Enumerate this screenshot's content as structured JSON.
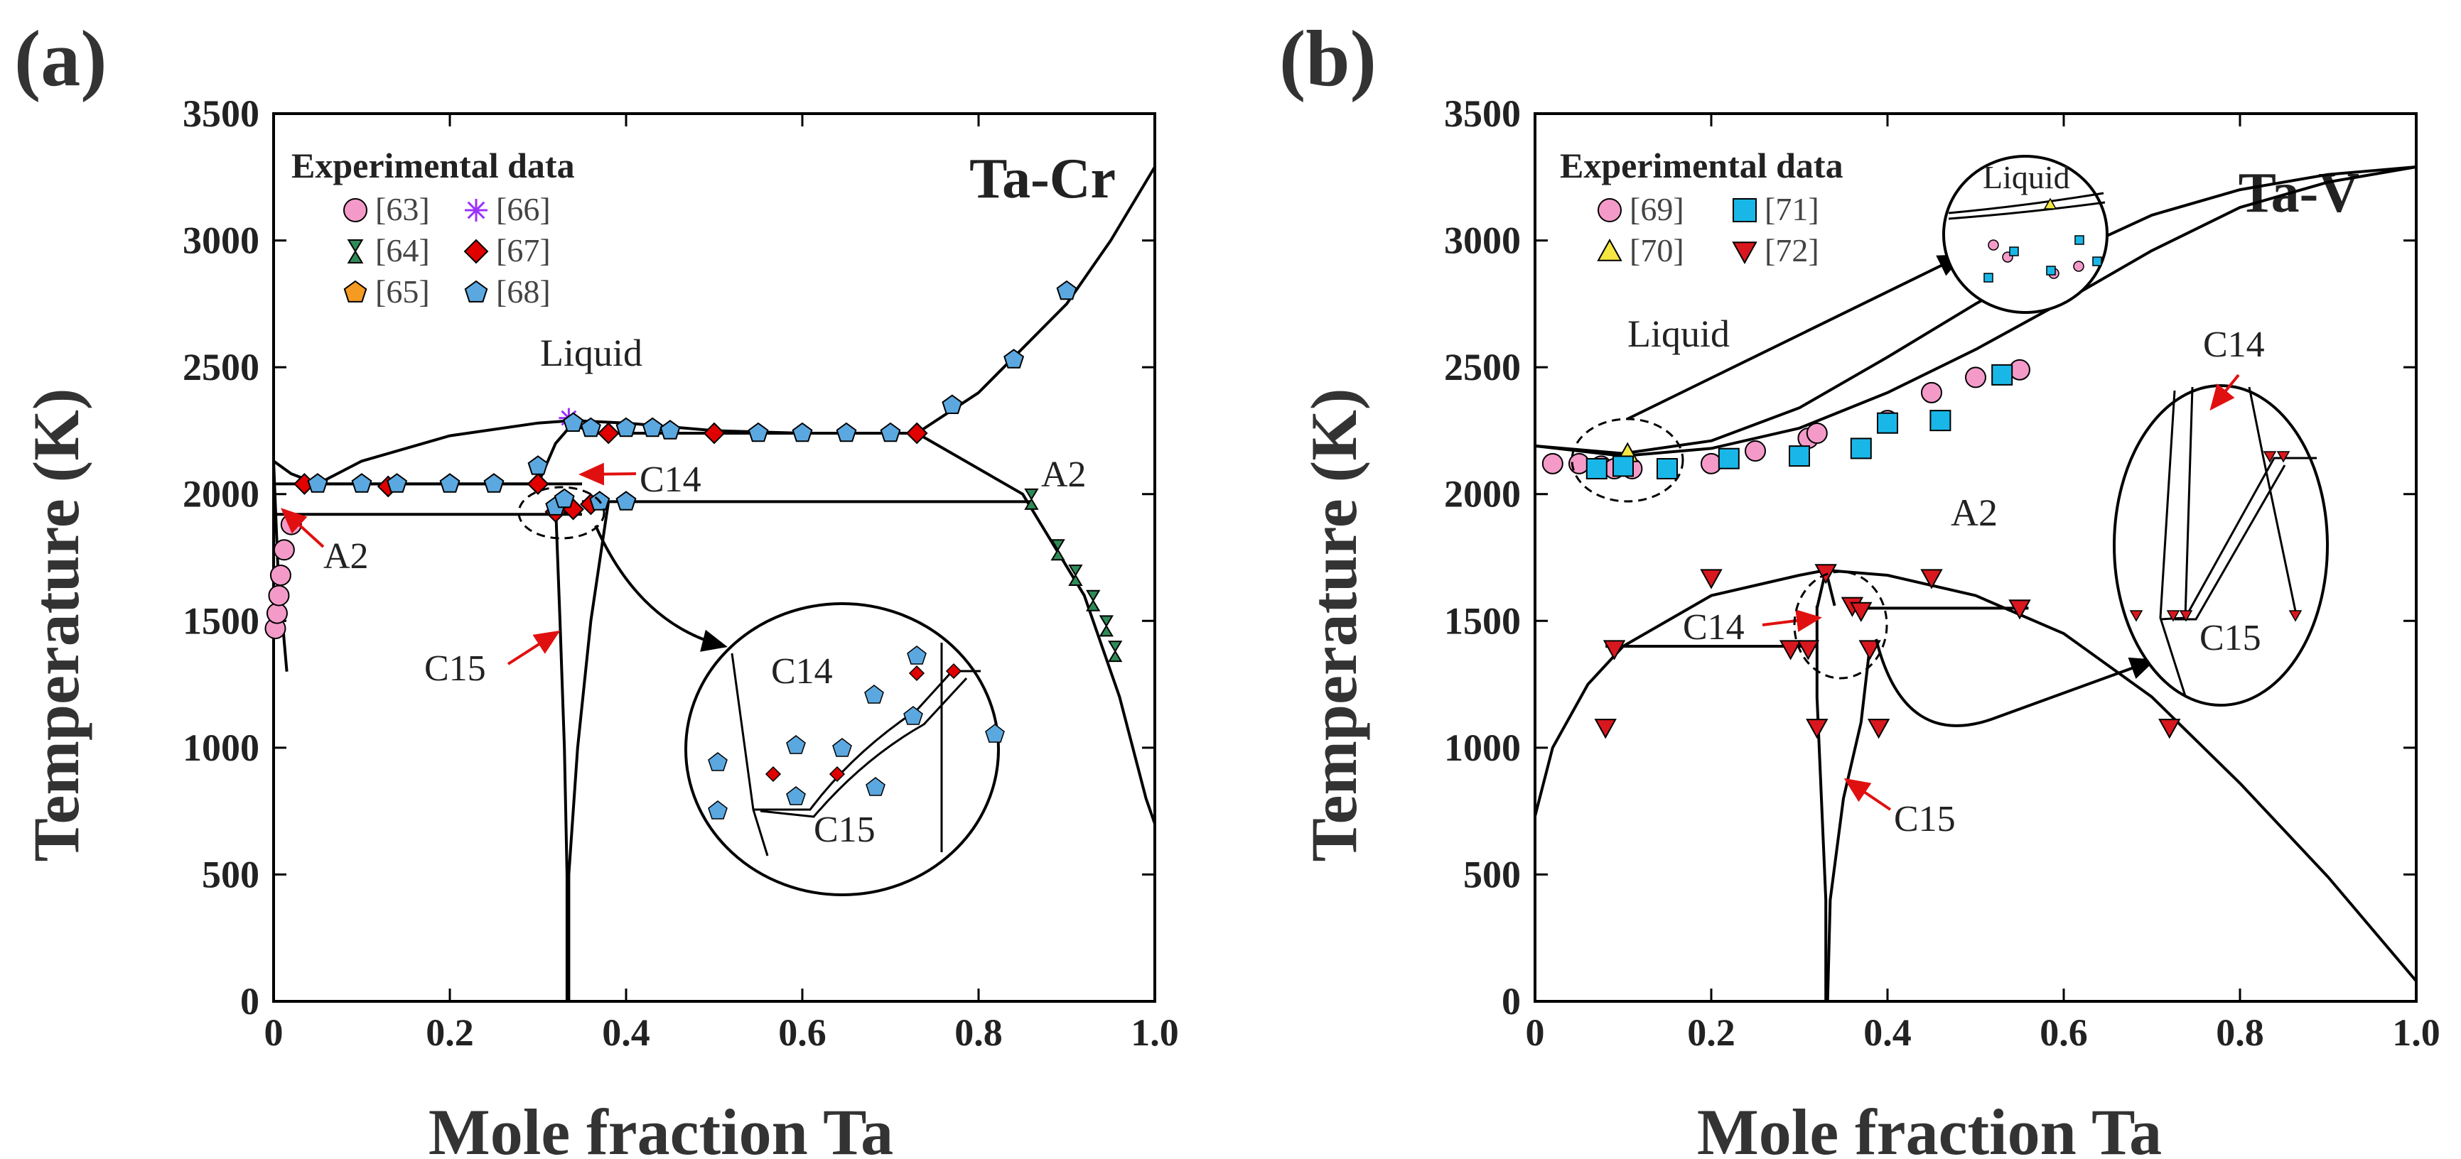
{
  "chart_data": [
    {
      "type": "scatter",
      "panel_label": "(a)",
      "system_title": "Ta-Cr",
      "xlabel": "Mole fraction Ta",
      "ylabel": "Temperature (K)",
      "xlim": [
        0,
        1.0
      ],
      "ylim": [
        0,
        3500
      ],
      "x_ticks": [
        "0",
        "0.2",
        "0.4",
        "0.6",
        "0.8",
        "1.0"
      ],
      "y_ticks": [
        "0",
        "500",
        "1000",
        "1500",
        "2000",
        "2500",
        "3000",
        "3500"
      ],
      "legend_title": "Experimental data",
      "legend": [
        {
          "label": "[63]",
          "marker": "circle",
          "color": "#f49ac9"
        },
        {
          "label": "[66]",
          "marker": "asterisk",
          "color": "#9b30ff"
        },
        {
          "label": "[64]",
          "marker": "hourglass",
          "color": "#2e8b57"
        },
        {
          "label": "[67]",
          "marker": "diamond",
          "color": "#e00000"
        },
        {
          "label": "[65]",
          "marker": "pentagon",
          "color": "#f59a23"
        },
        {
          "label": "[68]",
          "marker": "pentagon",
          "color": "#5ba8e0"
        }
      ],
      "phase_labels": [
        "Liquid",
        "C14",
        "A2",
        "A2",
        "C15"
      ],
      "inset_labels": [
        "C14",
        "C15"
      ],
      "curves": [
        {
          "name": "liquidus-left",
          "points": [
            [
              0,
              2130
            ],
            [
              0.02,
              2080
            ],
            [
              0.05,
              2040
            ],
            [
              0.1,
              2040
            ],
            [
              0.2,
              2040
            ],
            [
              0.3,
              2040
            ]
          ]
        },
        {
          "name": "liquid-dome",
          "points": [
            [
              0.05,
              2040
            ],
            [
              0.1,
              2130
            ],
            [
              0.2,
              2230
            ],
            [
              0.3,
              2280
            ],
            [
              0.34,
              2290
            ],
            [
              0.4,
              2280
            ],
            [
              0.5,
              2250
            ],
            [
              0.6,
              2240
            ],
            [
              0.7,
              2240
            ],
            [
              0.73,
              2240
            ]
          ]
        },
        {
          "name": "eutectic-left",
          "points": [
            [
              0.0,
              2040
            ],
            [
              0.35,
              2040
            ]
          ]
        },
        {
          "name": "solidus-A2-left",
          "points": [
            [
              0,
              2130
            ],
            [
              0.005,
              1700
            ],
            [
              0.01,
              1500
            ],
            [
              0.015,
              1300
            ]
          ]
        },
        {
          "name": "eutectoid-line",
          "points": [
            [
              0.0,
              1920
            ],
            [
              0.35,
              1920
            ]
          ]
        },
        {
          "name": "A2-line-right",
          "points": [
            [
              0.35,
              1970
            ],
            [
              0.86,
              1970
            ]
          ]
        },
        {
          "name": "liquidus-right",
          "points": [
            [
              0.73,
              2240
            ],
            [
              0.8,
              2400
            ],
            [
              0.9,
              2750
            ],
            [
              0.95,
              3000
            ],
            [
              1.0,
              3290
            ]
          ]
        },
        {
          "name": "plateau-right",
          "points": [
            [
              0.36,
              2240
            ],
            [
              0.73,
              2240
            ]
          ]
        },
        {
          "name": "solidus-right",
          "points": [
            [
              0.73,
              2240
            ],
            [
              0.85,
              2000
            ],
            [
              0.92,
              1600
            ],
            [
              0.96,
              1200
            ],
            [
              0.99,
              800
            ],
            [
              1.0,
              700
            ]
          ]
        },
        {
          "name": "C15-left",
          "points": [
            [
              0.32,
              1960
            ],
            [
              0.325,
              1500
            ],
            [
              0.33,
              1000
            ],
            [
              0.333,
              500
            ],
            [
              0.333,
              0
            ]
          ]
        },
        {
          "name": "C15-right",
          "points": [
            [
              0.38,
              1970
            ],
            [
              0.36,
              1500
            ],
            [
              0.345,
              1000
            ],
            [
              0.335,
              500
            ],
            [
              0.335,
              0
            ]
          ]
        },
        {
          "name": "C14-top",
          "points": [
            [
              0.3,
              2040
            ],
            [
              0.32,
              2200
            ],
            [
              0.34,
              2280
            ],
            [
              0.36,
              2240
            ]
          ]
        }
      ],
      "series": [
        {
          "name": "[63]",
          "points": [
            [
              0.002,
              1470
            ],
            [
              0.004,
              1530
            ],
            [
              0.006,
              1600
            ],
            [
              0.008,
              1680
            ],
            [
              0.012,
              1780
            ],
            [
              0.02,
              1880
            ]
          ]
        },
        {
          "name": "[64]",
          "points": [
            [
              0.86,
              1980
            ],
            [
              0.89,
              1780
            ],
            [
              0.91,
              1680
            ],
            [
              0.93,
              1580
            ],
            [
              0.945,
              1480
            ],
            [
              0.955,
              1380
            ]
          ]
        },
        {
          "name": "[66]",
          "points": [
            [
              0.335,
              2300
            ]
          ]
        },
        {
          "name": "[67]",
          "points": [
            [
              0.035,
              2040
            ],
            [
              0.13,
              2030
            ],
            [
              0.3,
              2040
            ],
            [
              0.32,
              1930
            ],
            [
              0.34,
              1940
            ],
            [
              0.36,
              1960
            ],
            [
              0.38,
              2240
            ],
            [
              0.5,
              2240
            ],
            [
              0.73,
              2240
            ]
          ]
        },
        {
          "name": "[68]",
          "points": [
            [
              0.05,
              2040
            ],
            [
              0.1,
              2040
            ],
            [
              0.14,
              2040
            ],
            [
              0.2,
              2040
            ],
            [
              0.25,
              2040
            ],
            [
              0.3,
              2110
            ],
            [
              0.32,
              1950
            ],
            [
              0.33,
              1980
            ],
            [
              0.34,
              2280
            ],
            [
              0.36,
              2260
            ],
            [
              0.37,
              1970
            ],
            [
              0.4,
              1970
            ],
            [
              0.4,
              2260
            ],
            [
              0.43,
              2260
            ],
            [
              0.45,
              2250
            ],
            [
              0.55,
              2240
            ],
            [
              0.6,
              2240
            ],
            [
              0.65,
              2240
            ],
            [
              0.7,
              2240
            ],
            [
              0.77,
              2350
            ],
            [
              0.84,
              2530
            ],
            [
              0.9,
              2800
            ]
          ]
        }
      ]
    },
    {
      "type": "scatter",
      "panel_label": "(b)",
      "system_title": "Ta-V",
      "xlabel": "Mole fraction Ta",
      "ylabel": "Temperature (K)",
      "xlim": [
        0,
        1.0
      ],
      "ylim": [
        0,
        3500
      ],
      "x_ticks": [
        "0",
        "0.2",
        "0.4",
        "0.6",
        "0.8",
        "1.0"
      ],
      "y_ticks": [
        "0",
        "500",
        "1000",
        "1500",
        "2000",
        "2500",
        "3000",
        "3500"
      ],
      "legend_title": "Experimental data",
      "legend": [
        {
          "label": "[69]",
          "marker": "circle",
          "color": "#f49ac9"
        },
        {
          "label": "[71]",
          "marker": "square",
          "color": "#19b7e8"
        },
        {
          "label": "[70]",
          "marker": "triangle-up",
          "color": "#f5e642"
        },
        {
          "label": "[72]",
          "marker": "triangle-down",
          "color": "#d8181e"
        }
      ],
      "phase_labels": [
        "Liquid",
        "A2",
        "C14",
        "C15"
      ],
      "inset_labels": [
        "Liquid",
        "C14",
        "C15"
      ],
      "curves": [
        {
          "name": "liquidus",
          "points": [
            [
              0,
              2190
            ],
            [
              0.1,
              2150
            ],
            [
              0.2,
              2180
            ],
            [
              0.3,
              2260
            ],
            [
              0.4,
              2400
            ],
            [
              0.5,
              2570
            ],
            [
              0.6,
              2760
            ],
            [
              0.7,
              2960
            ],
            [
              0.8,
              3130
            ],
            [
              0.9,
              3230
            ],
            [
              1.0,
              3290
            ]
          ]
        },
        {
          "name": "solidus",
          "points": [
            [
              0,
              2190
            ],
            [
              0.1,
              2160
            ],
            [
              0.2,
              2210
            ],
            [
              0.3,
              2340
            ],
            [
              0.4,
              2540
            ],
            [
              0.5,
              2750
            ],
            [
              0.6,
              2940
            ],
            [
              0.7,
              3100
            ],
            [
              0.8,
              3200
            ],
            [
              0.9,
              3260
            ],
            [
              1.0,
              3290
            ]
          ]
        },
        {
          "name": "miscibility-gap",
          "points": [
            [
              0,
              730
            ],
            [
              0.02,
              1000
            ],
            [
              0.06,
              1250
            ],
            [
              0.1,
              1400
            ],
            [
              0.2,
              1600
            ],
            [
              0.3,
              1680
            ],
            [
              0.33,
              1700
            ],
            [
              0.4,
              1680
            ],
            [
              0.5,
              1600
            ],
            [
              0.6,
              1450
            ],
            [
              0.7,
              1200
            ],
            [
              0.8,
              860
            ],
            [
              0.9,
              490
            ],
            [
              1.0,
              80
            ]
          ]
        },
        {
          "name": "eutectoid-left",
          "points": [
            [
              0.08,
              1400
            ],
            [
              0.32,
              1400
            ]
          ]
        },
        {
          "name": "eutectoid-right",
          "points": [
            [
              0.36,
              1550
            ],
            [
              0.56,
              1550
            ]
          ]
        },
        {
          "name": "C15-left",
          "points": [
            [
              0.32,
              1560
            ],
            [
              0.32,
              1200
            ],
            [
              0.325,
              800
            ],
            [
              0.33,
              400
            ],
            [
              0.33,
              0
            ]
          ]
        },
        {
          "name": "C15-right",
          "points": [
            [
              0.38,
              1400
            ],
            [
              0.37,
              1100
            ],
            [
              0.35,
              800
            ],
            [
              0.335,
              400
            ],
            [
              0.332,
              0
            ]
          ]
        },
        {
          "name": "C14-left",
          "points": [
            [
              0.32,
              1550
            ],
            [
              0.33,
              1700
            ],
            [
              0.34,
              1560
            ]
          ]
        }
      ],
      "series": [
        {
          "name": "[69]",
          "points": [
            [
              0.02,
              2120
            ],
            [
              0.05,
              2120
            ],
            [
              0.075,
              2110
            ],
            [
              0.09,
              2100
            ],
            [
              0.11,
              2100
            ],
            [
              0.15,
              2100
            ],
            [
              0.2,
              2120
            ],
            [
              0.25,
              2170
            ],
            [
              0.31,
              2220
            ],
            [
              0.32,
              2240
            ],
            [
              0.4,
              2290
            ],
            [
              0.45,
              2400
            ],
            [
              0.5,
              2460
            ],
            [
              0.55,
              2490
            ]
          ]
        },
        {
          "name": "[70]",
          "points": [
            [
              0.105,
              2160
            ]
          ]
        },
        {
          "name": "[71]",
          "points": [
            [
              0.07,
              2100
            ],
            [
              0.1,
              2110
            ],
            [
              0.15,
              2100
            ],
            [
              0.22,
              2140
            ],
            [
              0.3,
              2150
            ],
            [
              0.37,
              2180
            ],
            [
              0.4,
              2280
            ],
            [
              0.46,
              2290
            ],
            [
              0.53,
              2470
            ]
          ]
        },
        {
          "name": "[72]",
          "points": [
            [
              0.08,
              1080
            ],
            [
              0.09,
              1390
            ],
            [
              0.2,
              1670
            ],
            [
              0.29,
              1390
            ],
            [
              0.31,
              1390
            ],
            [
              0.32,
              1080
            ],
            [
              0.33,
              1690
            ],
            [
              0.36,
              1560
            ],
            [
              0.37,
              1540
            ],
            [
              0.38,
              1390
            ],
            [
              0.39,
              1080
            ],
            [
              0.45,
              1670
            ],
            [
              0.55,
              1550
            ],
            [
              0.72,
              1080
            ]
          ]
        }
      ]
    }
  ]
}
